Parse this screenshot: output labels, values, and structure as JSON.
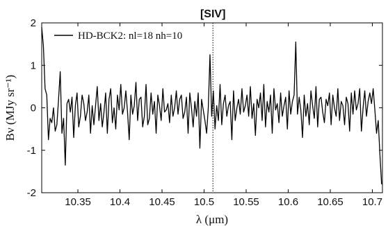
{
  "chart_data": {
    "type": "line",
    "xlabel": "λ (μm)",
    "ylabel": "Bν (MJy sr⁻¹)",
    "xlim": [
      10.307,
      10.712
    ],
    "ylim": [
      -2,
      2
    ],
    "xticks": [
      10.35,
      10.4,
      10.45,
      10.5,
      10.55,
      10.6,
      10.65,
      10.7
    ],
    "yticks": [
      -2,
      -1,
      0,
      1,
      2
    ],
    "annotation": {
      "label": "[SIV]",
      "x": 10.5105
    },
    "legend": {
      "position": "top-left",
      "label": "HD-BCK2: nl=18 nh=10"
    },
    "series": [
      {
        "name": "HD-BCK2: nl=18 nh=10",
        "color": "#000000",
        "x_start": 10.307,
        "x_step": 0.002,
        "values": [
          1.9,
          1.45,
          0.45,
          0.3,
          -0.75,
          -0.25,
          -0.35,
          0.0,
          -0.55,
          -0.4,
          0.2,
          0.85,
          -0.6,
          -0.25,
          -1.35,
          0.1,
          0.2,
          -0.1,
          0.25,
          -0.7,
          0.05,
          0.35,
          -0.45,
          -0.2,
          0.3,
          0.1,
          -0.3,
          -0.1,
          0.3,
          -0.6,
          0.05,
          -0.4,
          0.05,
          0.5,
          -0.3,
          0.1,
          -0.45,
          -0.1,
          0.35,
          -0.6,
          0.2,
          0.45,
          -0.35,
          0.0,
          -0.5,
          0.3,
          -0.05,
          0.55,
          -0.15,
          0.0,
          0.4,
          -0.1,
          -0.75,
          0.3,
          -0.15,
          0.05,
          0.6,
          -0.3,
          0.2,
          0.25,
          -0.45,
          -0.2,
          0.55,
          -0.4,
          -0.25,
          0.35,
          -0.15,
          0.15,
          -0.6,
          0.3,
          0.05,
          -0.3,
          0.45,
          -0.1,
          -0.05,
          0.1,
          -0.35,
          0.3,
          -0.2,
          0.0,
          0.4,
          -0.15,
          0.2,
          0.3,
          -0.25,
          -0.1,
          0.25,
          -0.6,
          0.35,
          0.0,
          -0.45,
          0.15,
          -0.2,
          0.35,
          -0.95,
          0.2,
          -0.05,
          -0.3,
          -0.6,
          0.0,
          1.25,
          -0.2,
          0.4,
          -0.5,
          0.05,
          -0.3,
          0.55,
          -0.4,
          0.1,
          0.3,
          -0.2,
          0.05,
          0.15,
          -0.75,
          0.4,
          -0.3,
          0.0,
          0.2,
          -0.15,
          0.45,
          -0.1,
          0.05,
          0.3,
          -0.2,
          0.5,
          -0.25,
          0.1,
          -0.65,
          0.2,
          0.0,
          0.35,
          -0.3,
          0.55,
          -0.45,
          0.15,
          -0.1,
          0.3,
          -0.6,
          0.45,
          -0.05,
          0.1,
          -0.35,
          0.35,
          -0.2,
          0.05,
          0.25,
          -0.5,
          0.4,
          -0.15,
          0.15,
          0.3,
          1.55,
          -0.15,
          0.25,
          -0.05,
          -0.7,
          0.3,
          -0.2,
          0.1,
          -0.4,
          0.4,
          0.05,
          -0.25,
          0.5,
          -0.45,
          0.2,
          0.25,
          -0.1,
          -0.35,
          0.2,
          0.05,
          0.35,
          -0.4,
          0.3,
          0.0,
          -0.2,
          0.45,
          -0.3,
          0.15,
          0.05,
          -0.4,
          0.25,
          0.1,
          -0.55,
          0.35,
          -0.15,
          0.4,
          -0.05,
          0.1,
          0.45,
          -0.55,
          0.0,
          0.4,
          -0.2,
          0.15,
          0.35,
          0.1,
          0.45,
          -0.05,
          -0.6,
          -0.3,
          -1.1,
          -1.8
        ]
      }
    ]
  }
}
